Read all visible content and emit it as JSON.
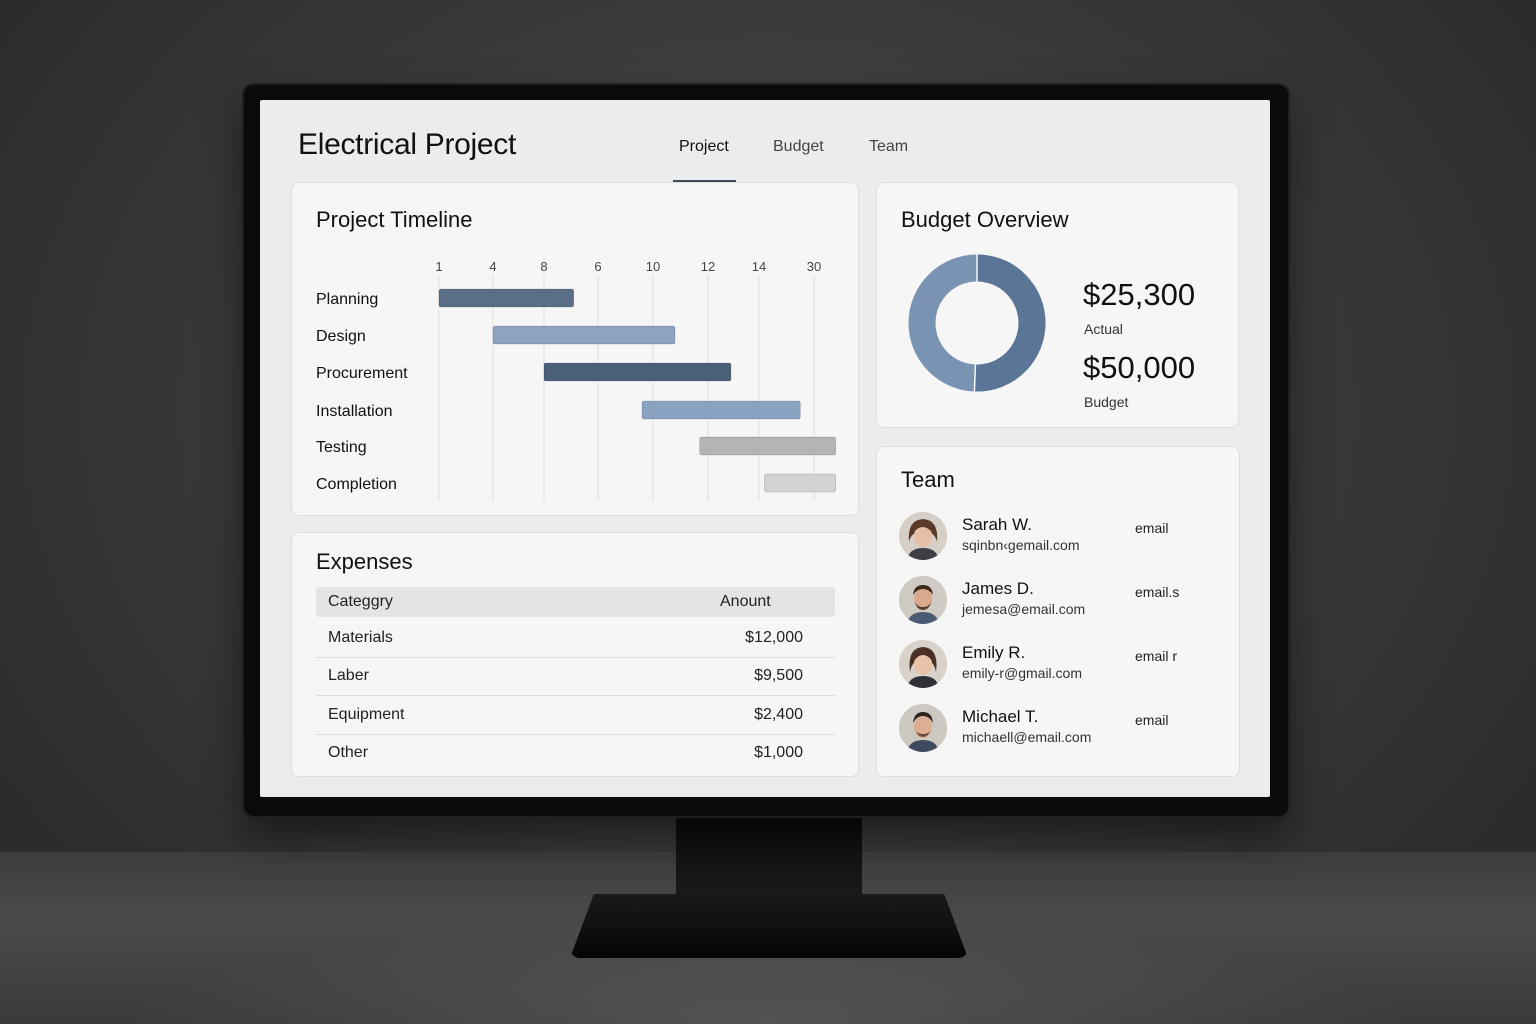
{
  "app": {
    "title": "Electrical Project"
  },
  "tabs": [
    {
      "label": "Project",
      "active": true
    },
    {
      "label": "Budget",
      "active": false
    },
    {
      "label": "Team",
      "active": false
    }
  ],
  "timeline": {
    "title": "Project Timeline",
    "ticks": [
      "1",
      "4",
      "8",
      "6",
      "10",
      "12",
      "14",
      "30"
    ],
    "tasks": [
      {
        "label": "Planning",
        "start_tick": 0,
        "end_tick": 2.55,
        "color": "#5a6f86"
      },
      {
        "label": "Design",
        "start_tick": 1,
        "end_tick": 4.4,
        "color": "#8ea3bf"
      },
      {
        "label": "Procurement",
        "start_tick": 2,
        "end_tick": 5.45,
        "color": "#4a5f78"
      },
      {
        "label": "Installation",
        "start_tick": 3.8,
        "end_tick": 6.75,
        "color": "#8aa3c2"
      },
      {
        "label": "Testing",
        "start_tick": 4.85,
        "end_tick": 7.4,
        "color": "#b4b4b6"
      },
      {
        "label": "Completion",
        "start_tick": 6.1,
        "end_tick": 7.4,
        "color": "#d3d3d3"
      }
    ]
  },
  "budget": {
    "title": "Budget Overview",
    "actual_value": "$25,300",
    "actual_label": "Actual",
    "budget_value": "$50,000",
    "budget_label": "Budget",
    "actual_fraction": 0.506,
    "colors": {
      "actual": "#5b7597",
      "remaining": "#7a93b3"
    }
  },
  "expenses": {
    "title": "Expenses",
    "header": {
      "category": "Categgry",
      "amount": "Anount"
    },
    "rows": [
      {
        "category": "Materials",
        "amount": "$12,000"
      },
      {
        "category": "Laber",
        "amount": "$9,500"
      },
      {
        "category": "Equipment",
        "amount": "$2,400"
      },
      {
        "category": "Other",
        "amount": "$1,000"
      }
    ]
  },
  "team": {
    "title": "Team",
    "members": [
      {
        "name": "Sarah W.",
        "email": "sqinbn‹gemail.com",
        "link": "email"
      },
      {
        "name": "James D.",
        "email": "jemesa@email.com",
        "link": "email.s"
      },
      {
        "name": "Emily R.",
        "email": "emily-r@gmail.com",
        "link": "email r"
      },
      {
        "name": "Michael T.",
        "email": "michaell@email.com",
        "link": "email"
      }
    ]
  }
}
